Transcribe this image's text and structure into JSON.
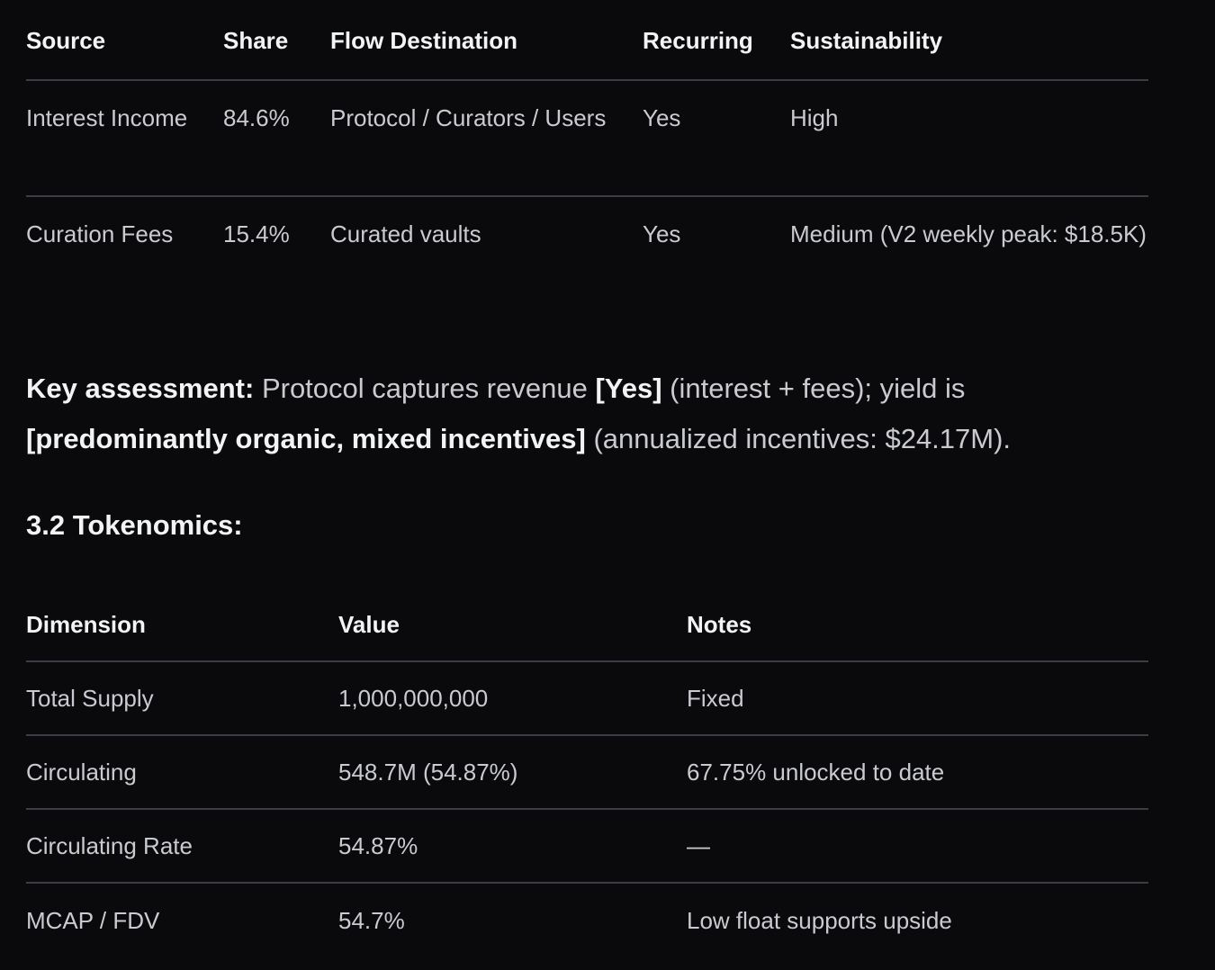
{
  "revenue_table": {
    "headers": [
      "Source",
      "Share",
      "Flow Destination",
      "Recurring",
      "Sustainability"
    ],
    "rows": [
      [
        "Interest Income",
        "84.6%",
        "Protocol / Curators / Users",
        "Yes",
        "High"
      ],
      [
        "Curation Fees",
        "15.4%",
        "Curated vaults",
        "Yes",
        "Medium (V2 weekly peak: $18.5K)"
      ]
    ]
  },
  "assessment": {
    "label": "Key assessment:",
    "text1": " Protocol captures revenue ",
    "bold1": "[Yes]",
    "text2": " (interest + fees); yield is ",
    "bold2": "[predominantly organic, mixed incentives]",
    "text3": " (annualized incentives: $24.17M)."
  },
  "tokenomics": {
    "title": "3.2 Tokenomics:",
    "headers": [
      "Dimension",
      "Value",
      "Notes"
    ],
    "rows": [
      [
        "Total Supply",
        "1,000,000,000",
        "Fixed"
      ],
      [
        "Circulating",
        "548.7M (54.87%)",
        "67.75% unlocked to date"
      ],
      [
        "Circulating Rate",
        "54.87%",
        "—"
      ],
      [
        "MCAP / FDV",
        "54.7%",
        "Low float supports upside"
      ]
    ]
  }
}
